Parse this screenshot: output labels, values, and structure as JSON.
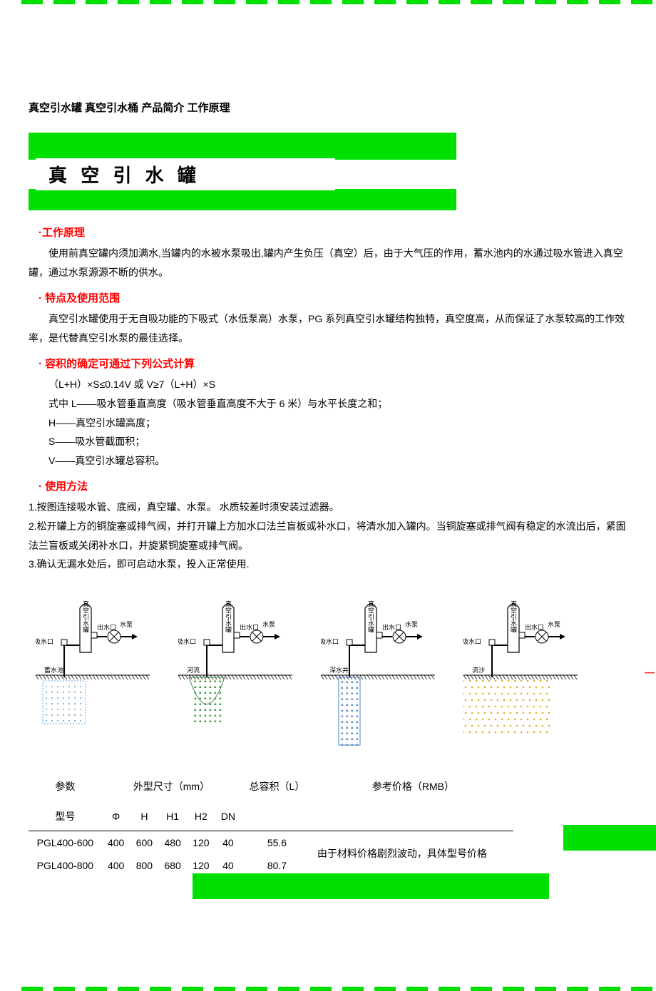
{
  "colors": {
    "accent_green": "#00e000",
    "heading_red": "#ff0000",
    "text": "#000000",
    "background": "#ffffff"
  },
  "breadcrumb": "真空引水罐  真空引水桶  产品简介  工作原理",
  "title": "真 空 引 水 罐",
  "sections": {
    "principle": {
      "heading": "·工作原理",
      "text": "使用前真空罐内须加满水,当罐内的水被水泵吸出,罐内产生负压（真空）后，由于大气压的作用，蓄水池内的水通过吸水管进入真空罐，通过水泵源源不断的供水。"
    },
    "features": {
      "heading": "· 特点及使用范围",
      "text": "真空引水罐使用于无自吸功能的下吸式（水低泵高）水泵，PG 系列真空引水罐结构独特，真空度高，从而保证了水泵较高的工作效率，是代替真空引水泵的最佳选择。"
    },
    "volume": {
      "heading": "· 容积的确定可通过下列公式计算",
      "formula": "（L+H）×S≤0.14V 或 V≥7（L+H）×S",
      "L": "式中 L——吸水管垂直高度（吸水管垂直高度不大于 6 米）与水平长度之和；",
      "H": "H——真空引水罐高度；",
      "S": "S——吸水管截面积；",
      "V": "V——真空引水罐总容积。"
    },
    "usage": {
      "heading": "· 使用方法",
      "items": [
        "1.按图连接吸水管、底阀，真空罐、水泵。  水质较差时须安装过滤器。",
        "2.松开罐上方的铜旋塞或排气阀，并打开罐上方加水口法兰盲板或补水口，将清水加入罐内。当铜旋塞或排气阀有稳定的水流出后，紧固法兰盲板或关闭补水口，并旋紧铜旋塞或排气阀。",
        "3.确认无漏水处后，即可启动水泵，投入正常使用."
      ]
    }
  },
  "diagram": {
    "tank_label_vertical": "真空引水罐",
    "inlet_label": "吸水口",
    "outlet_label": "出水口",
    "pump_label": "水泵",
    "scenes": [
      {
        "source_label": "蓄水池",
        "pattern": "dots_blue",
        "shape": "rect"
      },
      {
        "source_label": "河流",
        "pattern": "tri_green",
        "shape": "bowl"
      },
      {
        "source_label": "深水井",
        "pattern": "tri_blue",
        "shape": "well"
      },
      {
        "source_label": "流沙",
        "pattern": "dots_yellow",
        "shape": "spread"
      }
    ]
  },
  "table": {
    "header_group": {
      "param": "参数",
      "dims": "外型尺寸（mm）",
      "vol": "总容积（L）",
      "price": "参考价格（RMB）"
    },
    "header_sub": {
      "model": "型号",
      "phi": "Φ",
      "H": "H",
      "H1": "H1",
      "H2": "H2",
      "DN": "DN"
    },
    "rows": [
      {
        "model": "PGL400-600",
        "phi": "400",
        "H": "600",
        "H1": "480",
        "H2": "120",
        "DN": "40",
        "vol": "55.6"
      },
      {
        "model": "PGL400-800",
        "phi": "400",
        "H": "800",
        "H1": "680",
        "H2": "120",
        "DN": "40",
        "vol": "80.7"
      }
    ],
    "price_note": "由于材料价格剧烈波动，具体型号价格"
  }
}
